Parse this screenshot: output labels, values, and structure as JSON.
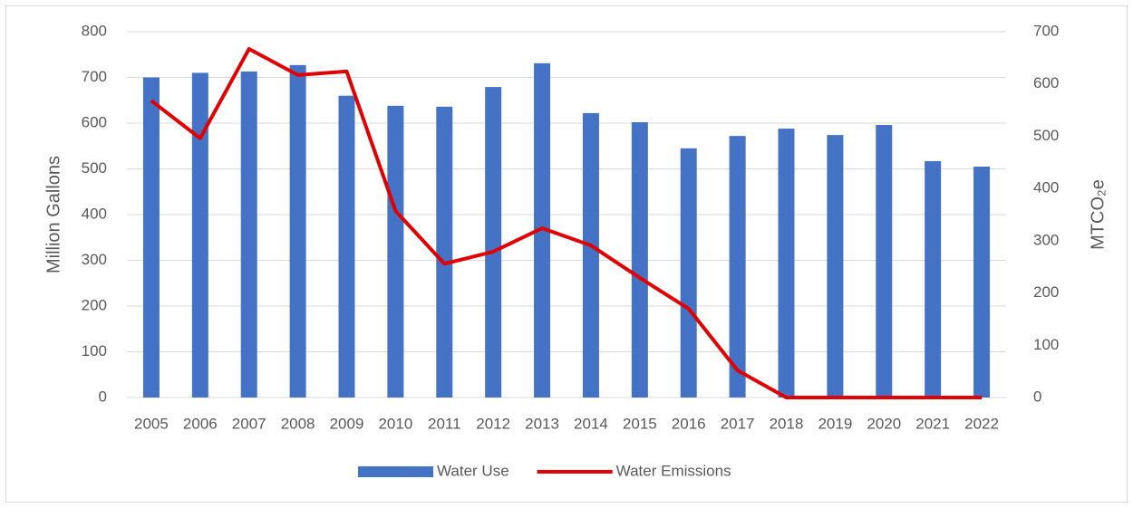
{
  "chart_data": {
    "type": "bar_line",
    "categories": [
      "2005",
      "2006",
      "2007",
      "2008",
      "2009",
      "2010",
      "2011",
      "2012",
      "2013",
      "2014",
      "2015",
      "2016",
      "2017",
      "2018",
      "2019",
      "2020",
      "2021",
      "2022"
    ],
    "series": [
      {
        "name": "Water Use",
        "type": "bar",
        "color": "#4472c4",
        "axis": "y",
        "values": [
          700,
          710,
          713,
          727,
          660,
          638,
          636,
          679,
          731,
          622,
          602,
          545,
          572,
          588,
          574,
          596,
          517,
          505
        ]
      },
      {
        "name": "Water Emissions",
        "type": "line",
        "color": "#e00000",
        "axis": "y2",
        "values": [
          568,
          496,
          667,
          617,
          624,
          357,
          256,
          279,
          324,
          291,
          229,
          170,
          52,
          0,
          0,
          0,
          0,
          0
        ]
      }
    ],
    "y_label": "Million Gallons",
    "y2_label": "MTCO₂e",
    "ylim": [
      0,
      800
    ],
    "yticks": [
      0,
      100,
      200,
      300,
      400,
      500,
      600,
      700,
      800
    ],
    "y2lim": [
      0,
      700
    ],
    "y2ticks": [
      0,
      100,
      200,
      300,
      400,
      500,
      600,
      700
    ],
    "grid": true,
    "legend": "bottom"
  }
}
